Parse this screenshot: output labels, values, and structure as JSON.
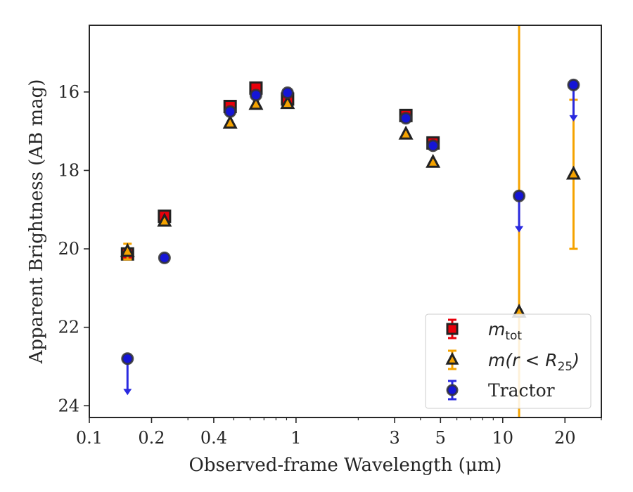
{
  "chart_data": {
    "type": "scatter",
    "title": "",
    "xlabel": "Observed-frame Wavelength (μm)",
    "ylabel": "Apparent Brightness (AB mag)",
    "xscale": "log",
    "xlim": [
      0.1,
      30
    ],
    "ylim": [
      24.3,
      14.3
    ],
    "y_inverted": true,
    "grid": false,
    "legend_position": "lower-right",
    "x_ticks": [
      {
        "value": 0.1,
        "label": "0.1"
      },
      {
        "value": 0.2,
        "label": "0.2"
      },
      {
        "value": 0.4,
        "label": "0.4"
      },
      {
        "value": 1,
        "label": "1"
      },
      {
        "value": 3,
        "label": "3"
      },
      {
        "value": 5,
        "label": "5"
      },
      {
        "value": 10,
        "label": "10"
      },
      {
        "value": 20,
        "label": "20"
      }
    ],
    "y_ticks": [
      {
        "value": 16,
        "label": "16"
      },
      {
        "value": 18,
        "label": "18"
      },
      {
        "value": 20,
        "label": "20"
      },
      {
        "value": 22,
        "label": "22"
      },
      {
        "value": 24,
        "label": "24"
      }
    ],
    "series": [
      {
        "name": "m_tot",
        "legend_label": {
          "base": "m",
          "sub": "tot"
        },
        "marker": "square",
        "face_color": "#e8000b",
        "edge_color": "#222222",
        "errorbar_color": "#e8000b",
        "points": [
          {
            "x": 0.153,
            "y": 20.13,
            "yerr_low": 0.1,
            "yerr_high": 0.1
          },
          {
            "x": 0.231,
            "y": 19.17,
            "yerr_low": 0.05,
            "yerr_high": 0.05
          },
          {
            "x": 0.48,
            "y": 16.37
          },
          {
            "x": 0.64,
            "y": 15.9
          },
          {
            "x": 0.91,
            "y": 16.18
          },
          {
            "x": 3.4,
            "y": 16.6
          },
          {
            "x": 4.6,
            "y": 17.3
          }
        ]
      },
      {
        "name": "m(r < R25)",
        "legend_label": {
          "base": "m",
          "mid": "(r < R",
          "sub": "25",
          "close": ")"
        },
        "marker": "triangle",
        "face_color": "#f5a300",
        "edge_color": "#222222",
        "errorbar_color": "#f5a300",
        "points": [
          {
            "x": 0.153,
            "y": 20.07,
            "yerr_low": 0.2,
            "yerr_high": 0.2
          },
          {
            "x": 0.231,
            "y": 19.3
          },
          {
            "x": 0.48,
            "y": 16.8
          },
          {
            "x": 0.64,
            "y": 16.32
          },
          {
            "x": 0.91,
            "y": 16.3
          },
          {
            "x": 3.4,
            "y": 17.08
          },
          {
            "x": 4.6,
            "y": 17.8
          },
          {
            "x": 12,
            "y": 21.62,
            "yerr_low": 7.5,
            "yerr_high": 7.5
          },
          {
            "x": 22,
            "y": 18.1,
            "yerr_low": 1.9,
            "yerr_high": 1.9
          }
        ]
      },
      {
        "name": "Tractor",
        "legend_label": {
          "base": "Tractor"
        },
        "marker": "circle",
        "face_color": "#1515d6",
        "edge_color": "#333333",
        "errorbar_color": "#2a2ae0",
        "points": [
          {
            "x": 0.153,
            "y": 22.8,
            "upper_limit": true
          },
          {
            "x": 0.231,
            "y": 20.23
          },
          {
            "x": 0.48,
            "y": 16.5
          },
          {
            "x": 0.64,
            "y": 16.08
          },
          {
            "x": 0.91,
            "y": 16.02
          },
          {
            "x": 3.4,
            "y": 16.67
          },
          {
            "x": 4.6,
            "y": 17.37
          },
          {
            "x": 12,
            "y": 18.65,
            "upper_limit": true
          },
          {
            "x": 22,
            "y": 15.82,
            "upper_limit": true
          }
        ]
      }
    ]
  }
}
